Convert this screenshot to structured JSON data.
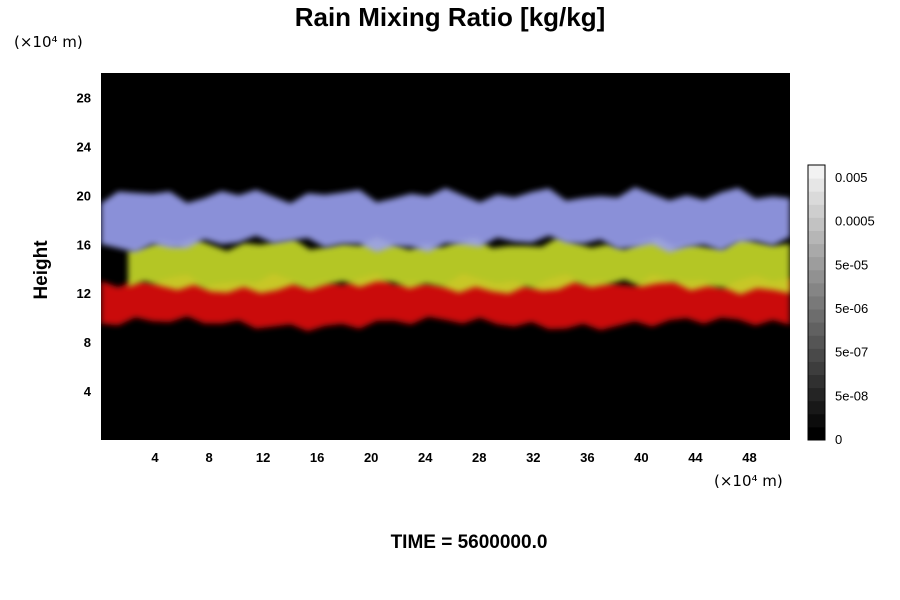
{
  "chart_data": {
    "type": "heatmap",
    "title": "Rain Mixing Ratio [kg/kg]",
    "ylabel": "Height",
    "y_unit": "(×10⁴ m)",
    "x_unit": "(×10⁴ m)",
    "xlim": [
      0,
      51
    ],
    "ylim": [
      0,
      30
    ],
    "x_ticks": [
      "4",
      "8",
      "12",
      "16",
      "20",
      "24",
      "28",
      "32",
      "36",
      "40",
      "44",
      "48"
    ],
    "y_ticks": [
      "4",
      "8",
      "12",
      "16",
      "20",
      "24",
      "28"
    ],
    "colorbar": {
      "labels": [
        "0",
        "5e-08",
        "5e-07",
        "5e-06",
        "5e-05",
        "0.0005",
        "0.005"
      ],
      "range_colors": [
        "#000000",
        "#f2f2f2"
      ]
    },
    "features": [
      {
        "color": "#e01010",
        "x": [
          0,
          51
        ],
        "y": [
          9.5,
          13
        ]
      },
      {
        "color": "#c8dc2a",
        "x": [
          2,
          51
        ],
        "y": [
          12.5,
          16
        ]
      },
      {
        "color": "#9aa0f0",
        "x": [
          0,
          51
        ],
        "y": [
          16,
          20
        ]
      }
    ],
    "background": "#000000"
  },
  "footer": {
    "time_label": "TIME = 5600000.0"
  }
}
